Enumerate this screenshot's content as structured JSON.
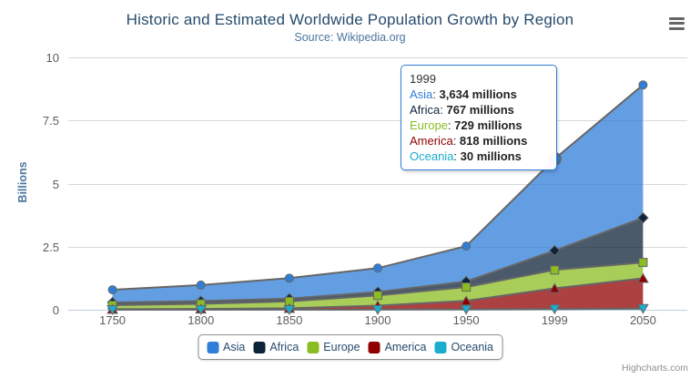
{
  "title": "Historic and Estimated Worldwide Population Growth by Region",
  "subtitle": "Source: Wikipedia.org",
  "credits": "Highcharts.com",
  "y_axis": {
    "title": "Billions",
    "ticks": [
      "0",
      "2.5",
      "5",
      "7.5",
      "10"
    ]
  },
  "x_axis": {
    "categories": [
      "1750",
      "1800",
      "1850",
      "1900",
      "1950",
      "1999",
      "2050"
    ]
  },
  "tooltip": {
    "header": "1999",
    "rows": [
      {
        "label": "Asia",
        "value": "3,634 millions",
        "color": "#2f7ed8"
      },
      {
        "label": "Africa",
        "value": "767 millions",
        "color": "#0d233a"
      },
      {
        "label": "Europe",
        "value": "729 millions",
        "color": "#8bbc21"
      },
      {
        "label": "America",
        "value": "818 millions",
        "color": "#910000"
      },
      {
        "label": "Oceania",
        "value": "30 millions",
        "color": "#1aadce"
      }
    ]
  },
  "legend": {
    "items": [
      {
        "label": "Asia",
        "color": "#2f7ed8"
      },
      {
        "label": "Africa",
        "color": "#0d233a"
      },
      {
        "label": "Europe",
        "color": "#8bbc21"
      },
      {
        "label": "America",
        "color": "#910000"
      },
      {
        "label": "Oceania",
        "color": "#1aadce"
      }
    ]
  },
  "colors": {
    "title": "#274b6d",
    "subtitle": "#4d759e",
    "axis_title": "#4d759e",
    "axis_labels": "#5c5c5c",
    "grid_line": "#d8d8d8",
    "axis_line": "#c0d0e0",
    "series_edge_line": "#666666",
    "legend_border": "#909090",
    "legend_text": "#274b6d",
    "tooltip_border": "#2f7ed8",
    "credits": "#909090",
    "menu_icon": "#666666",
    "background": "#ffffff"
  },
  "chart_data": {
    "type": "area",
    "stacking": "normal",
    "title": "Historic and Estimated Worldwide Population Growth by Region",
    "subtitle": "Source: Wikipedia.org",
    "categories": [
      "1750",
      "1800",
      "1850",
      "1900",
      "1950",
      "1999",
      "2050"
    ],
    "series": [
      {
        "name": "Asia",
        "color": "#2f7ed8",
        "marker": "circle",
        "data_millions": [
          502,
          635,
          809,
          947,
          1402,
          3634,
          5268
        ]
      },
      {
        "name": "Africa",
        "color": "#0d233a",
        "marker": "diamond",
        "data_millions": [
          106,
          107,
          111,
          133,
          221,
          767,
          1766
        ]
      },
      {
        "name": "Europe",
        "color": "#8bbc21",
        "marker": "square",
        "data_millions": [
          163,
          203,
          276,
          408,
          547,
          729,
          628
        ]
      },
      {
        "name": "America",
        "color": "#910000",
        "marker": "triangle",
        "data_millions": [
          18,
          31,
          54,
          156,
          339,
          818,
          1201
        ]
      },
      {
        "name": "Oceania",
        "color": "#1aadce",
        "marker": "triangle-down",
        "data_millions": [
          2,
          2,
          2,
          6,
          13,
          30,
          46
        ]
      }
    ],
    "xlabel": "",
    "ylabel": "Billions",
    "yticks": [
      0,
      2.5,
      5,
      7.5,
      10
    ],
    "ylim": [
      0,
      10
    ],
    "unit": "values in millions, y axis in billions",
    "grid": "horizontal",
    "legend_position": "bottom",
    "fill_opacity": 0.75,
    "hover_point": {
      "series": "Asia",
      "category": "1999"
    }
  }
}
